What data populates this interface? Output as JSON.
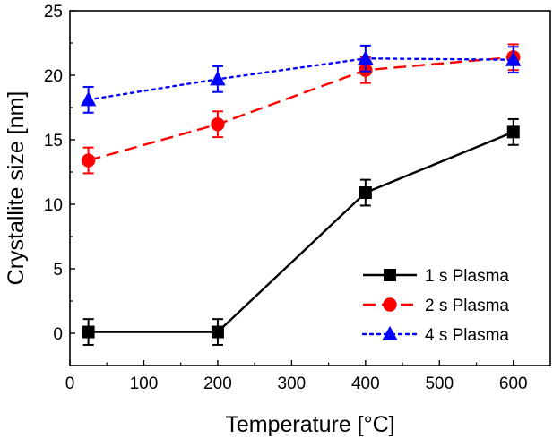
{
  "chart_data": {
    "type": "line",
    "title": "",
    "xlabel": "Temperature [°C]",
    "ylabel": "Crystallite size [nm]",
    "xlim": [
      0,
      650
    ],
    "ylim": [
      -2.5,
      25
    ],
    "xticks": [
      0,
      100,
      200,
      300,
      400,
      500,
      600
    ],
    "yticks": [
      0,
      5,
      10,
      15,
      20,
      25
    ],
    "legend_position": "bottom-right",
    "series": [
      {
        "name": "1 s Plasma",
        "color": "#000000",
        "marker": "square",
        "line_style": "solid",
        "x": [
          25,
          200,
          400,
          600
        ],
        "y": [
          0.1,
          0.1,
          10.9,
          15.6
        ],
        "error": [
          1.0,
          1.0,
          1.0,
          1.0
        ]
      },
      {
        "name": "2 s Plasma",
        "color": "#ff0000",
        "marker": "circle",
        "line_style": "dashed",
        "x": [
          25,
          200,
          400,
          600
        ],
        "y": [
          13.4,
          16.2,
          20.4,
          21.4
        ],
        "error": [
          1.0,
          1.0,
          1.0,
          1.0
        ]
      },
      {
        "name": "4 s Plasma",
        "color": "#0000ff",
        "marker": "triangle",
        "line_style": "dotted",
        "x": [
          25,
          200,
          400,
          600
        ],
        "y": [
          18.1,
          19.7,
          21.3,
          21.2
        ],
        "error": [
          1.0,
          1.0,
          1.0,
          1.0
        ]
      }
    ]
  }
}
